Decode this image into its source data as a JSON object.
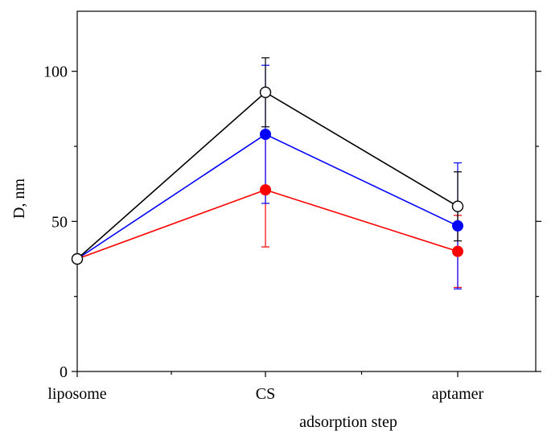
{
  "chart_data": {
    "type": "line",
    "title": "",
    "xlabel": "adsorption step",
    "ylabel": "D, nm",
    "categories": [
      "liposome",
      "CS",
      "aptamer"
    ],
    "ylim": [
      0,
      120
    ],
    "y_major_ticks": [
      0,
      50,
      100
    ],
    "y_minor_ticks": [
      25,
      75
    ],
    "grid": false,
    "legend": "none",
    "series": [
      {
        "marker": "open-circle",
        "color": "#000000",
        "values": [
          37.5,
          93,
          55
        ],
        "error": [
          null,
          11.5,
          11.5
        ]
      },
      {
        "marker": "filled-circle",
        "color": "#0000ff",
        "values": [
          37.5,
          79,
          48.5
        ],
        "error": [
          null,
          23,
          21
        ]
      },
      {
        "marker": "filled-circle",
        "color": "#ff0000",
        "values": [
          37.5,
          60.5,
          40
        ],
        "error": [
          null,
          19,
          12
        ]
      }
    ]
  }
}
